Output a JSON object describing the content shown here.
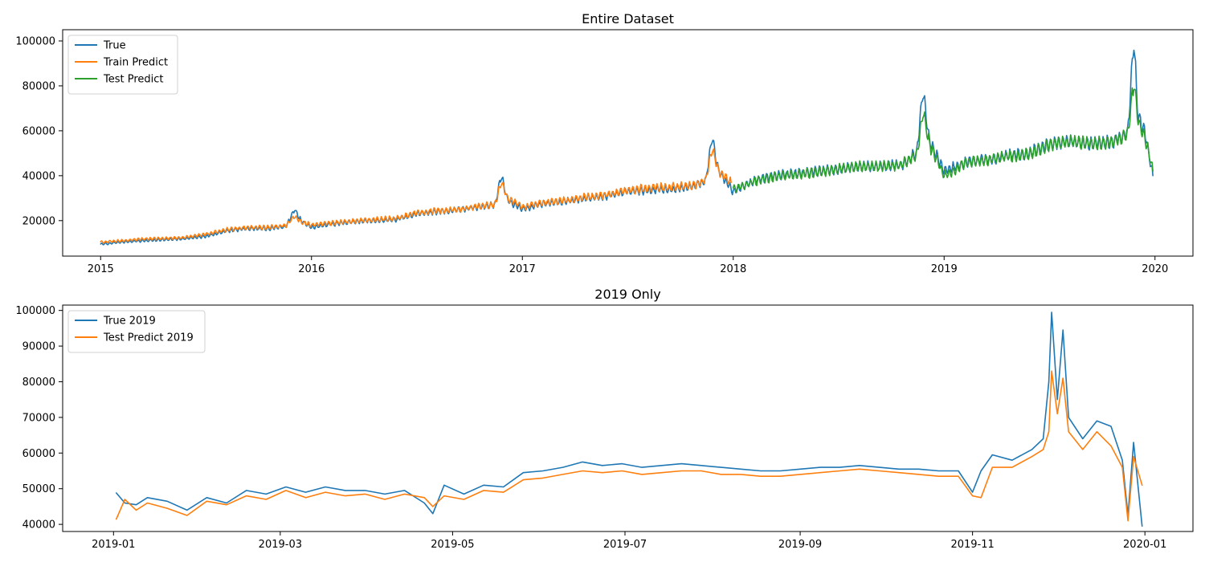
{
  "chart_data": [
    {
      "type": "line",
      "title": "Entire Dataset",
      "xlabel": "",
      "ylabel": "",
      "x_axis": "year",
      "xlim": [
        2014.82,
        2020.18
      ],
      "ylim": [
        4200,
        105000
      ],
      "xticks": [
        2015,
        2016,
        2017,
        2018,
        2019,
        2020
      ],
      "xtick_labels": [
        "2015",
        "2016",
        "2017",
        "2018",
        "2019",
        "2020"
      ],
      "yticks": [
        20000,
        40000,
        60000,
        80000,
        100000
      ],
      "ytick_labels": [
        "20000",
        "40000",
        "60000",
        "80000",
        "100000"
      ],
      "legend_position": "top-left",
      "legend": [
        "True",
        "Train Predict",
        "Test Predict"
      ],
      "series": [
        {
          "name": "True",
          "color": "#1f77b4",
          "x": [
            2015.0,
            2015.1,
            2015.2,
            2015.3,
            2015.4,
            2015.5,
            2015.6,
            2015.7,
            2015.8,
            2015.88,
            2015.92,
            2015.95,
            2016.0,
            2016.1,
            2016.2,
            2016.3,
            2016.4,
            2016.5,
            2016.6,
            2016.7,
            2016.8,
            2016.87,
            2016.9,
            2016.93,
            2017.0,
            2017.1,
            2017.2,
            2017.3,
            2017.4,
            2017.5,
            2017.6,
            2017.7,
            2017.8,
            2017.87,
            2017.9,
            2017.93,
            2018.0,
            2018.1,
            2018.2,
            2018.3,
            2018.4,
            2018.5,
            2018.6,
            2018.7,
            2018.8,
            2018.87,
            2018.9,
            2018.93,
            2019.0,
            2019.1,
            2019.2,
            2019.3,
            2019.4,
            2019.5,
            2019.6,
            2019.7,
            2019.8,
            2019.87,
            2019.9,
            2019.92,
            2019.95,
            2019.99
          ],
          "y": [
            9500,
            10500,
            11000,
            11500,
            12000,
            13000,
            15500,
            16500,
            16500,
            17500,
            25000,
            20000,
            17000,
            18500,
            19500,
            20000,
            20500,
            23000,
            24000,
            25000,
            26000,
            27000,
            40000,
            29000,
            25000,
            27500,
            28500,
            30000,
            31000,
            33000,
            33500,
            34000,
            35000,
            38000,
            57000,
            42000,
            33000,
            38000,
            40000,
            41000,
            42000,
            43000,
            44000,
            44000,
            45000,
            50000,
            78000,
            55000,
            42000,
            46000,
            47000,
            49000,
            50000,
            54000,
            55000,
            54000,
            55000,
            59000,
            99500,
            66000,
            60000,
            40000
          ]
        },
        {
          "name": "Train Predict",
          "color": "#ff7f0e",
          "x": [
            2015.0,
            2015.1,
            2015.2,
            2015.3,
            2015.4,
            2015.5,
            2015.6,
            2015.7,
            2015.8,
            2015.88,
            2015.92,
            2015.95,
            2016.0,
            2016.1,
            2016.2,
            2016.3,
            2016.4,
            2016.5,
            2016.6,
            2016.7,
            2016.8,
            2016.87,
            2016.9,
            2016.93,
            2017.0,
            2017.1,
            2017.2,
            2017.3,
            2017.4,
            2017.5,
            2017.6,
            2017.7,
            2017.8,
            2017.87,
            2017.9,
            2017.93,
            2017.99
          ],
          "y": [
            10500,
            11000,
            11800,
            12000,
            12500,
            14000,
            16000,
            17000,
            17000,
            18000,
            22000,
            19500,
            18000,
            19000,
            19800,
            20500,
            21000,
            23500,
            24500,
            25000,
            26500,
            27000,
            37000,
            30000,
            26000,
            28000,
            29000,
            30500,
            31500,
            33500,
            34500,
            35000,
            35500,
            38000,
            52000,
            42000,
            37000
          ]
        },
        {
          "name": "Test Predict",
          "color": "#2ca02c",
          "x": [
            2018.0,
            2018.1,
            2018.2,
            2018.3,
            2018.4,
            2018.5,
            2018.6,
            2018.7,
            2018.8,
            2018.87,
            2018.9,
            2018.93,
            2019.0,
            2019.1,
            2019.2,
            2019.3,
            2019.4,
            2019.5,
            2019.6,
            2019.7,
            2019.8,
            2019.87,
            2019.9,
            2019.92,
            2019.95,
            2019.99
          ],
          "y": [
            34000,
            37500,
            39500,
            40500,
            41500,
            43000,
            44000,
            44000,
            45000,
            49000,
            68000,
            54000,
            40000,
            45500,
            47000,
            48500,
            49500,
            53500,
            55000,
            54000,
            55000,
            58000,
            82000,
            64000,
            58000,
            42000
          ]
        }
      ]
    },
    {
      "type": "line",
      "title": "2019 Only",
      "xlabel": "",
      "ylabel": "",
      "x_axis": "date",
      "xlim": [
        "2018-12-14",
        "2020-01-18"
      ],
      "ylim": [
        38000,
        101500
      ],
      "xticks": [
        "2019-01-01",
        "2019-03-01",
        "2019-05-01",
        "2019-07-01",
        "2019-09-01",
        "2019-11-01",
        "2020-01-01"
      ],
      "xtick_labels": [
        "2019-01",
        "2019-03",
        "2019-05",
        "2019-07",
        "2019-09",
        "2019-11",
        "2020-01"
      ],
      "yticks": [
        40000,
        50000,
        60000,
        70000,
        80000,
        90000,
        100000
      ],
      "ytick_labels": [
        "40000",
        "50000",
        "60000",
        "70000",
        "80000",
        "90000",
        "100000"
      ],
      "legend_position": "top-left",
      "legend": [
        "True 2019",
        "Test Predict 2019"
      ],
      "series": [
        {
          "name": "True 2019",
          "color": "#1f77b4",
          "x": [
            "2019-01-02",
            "2019-01-05",
            "2019-01-09",
            "2019-01-13",
            "2019-01-20",
            "2019-01-27",
            "2019-02-03",
            "2019-02-10",
            "2019-02-17",
            "2019-02-24",
            "2019-03-03",
            "2019-03-10",
            "2019-03-17",
            "2019-03-24",
            "2019-03-31",
            "2019-04-07",
            "2019-04-14",
            "2019-04-21",
            "2019-04-24",
            "2019-04-28",
            "2019-05-05",
            "2019-05-12",
            "2019-05-19",
            "2019-05-26",
            "2019-06-02",
            "2019-06-09",
            "2019-06-16",
            "2019-06-23",
            "2019-06-30",
            "2019-07-07",
            "2019-07-14",
            "2019-07-21",
            "2019-07-28",
            "2019-08-04",
            "2019-08-11",
            "2019-08-18",
            "2019-08-25",
            "2019-09-01",
            "2019-09-08",
            "2019-09-15",
            "2019-09-22",
            "2019-09-29",
            "2019-10-06",
            "2019-10-13",
            "2019-10-20",
            "2019-10-27",
            "2019-11-01",
            "2019-11-04",
            "2019-11-08",
            "2019-11-15",
            "2019-11-22",
            "2019-11-26",
            "2019-11-28",
            "2019-11-29",
            "2019-12-01",
            "2019-12-03",
            "2019-12-05",
            "2019-12-10",
            "2019-12-15",
            "2019-12-20",
            "2019-12-24",
            "2019-12-26",
            "2019-12-28",
            "2019-12-31"
          ],
          "y": [
            48800,
            46000,
            45500,
            47500,
            46500,
            44000,
            47500,
            46000,
            49500,
            48500,
            50500,
            49000,
            50500,
            49500,
            49500,
            48500,
            49500,
            46000,
            43000,
            51000,
            48500,
            51000,
            50500,
            54500,
            55000,
            56000,
            57500,
            56500,
            57000,
            56000,
            56500,
            57000,
            56500,
            56000,
            55500,
            55000,
            55000,
            55500,
            56000,
            56000,
            56500,
            56000,
            55500,
            55500,
            55000,
            55000,
            49000,
            55000,
            59500,
            58000,
            61000,
            64000,
            80000,
            99500,
            75000,
            94500,
            70000,
            64000,
            69000,
            67500,
            58000,
            42500,
            63000,
            39500
          ]
        },
        {
          "name": "Test Predict 2019",
          "color": "#ff7f0e",
          "x": [
            "2019-01-02",
            "2019-01-05",
            "2019-01-09",
            "2019-01-13",
            "2019-01-20",
            "2019-01-27",
            "2019-02-03",
            "2019-02-10",
            "2019-02-17",
            "2019-02-24",
            "2019-03-03",
            "2019-03-10",
            "2019-03-17",
            "2019-03-24",
            "2019-03-31",
            "2019-04-07",
            "2019-04-14",
            "2019-04-21",
            "2019-04-24",
            "2019-04-28",
            "2019-05-05",
            "2019-05-12",
            "2019-05-19",
            "2019-05-26",
            "2019-06-02",
            "2019-06-09",
            "2019-06-16",
            "2019-06-23",
            "2019-06-30",
            "2019-07-07",
            "2019-07-14",
            "2019-07-21",
            "2019-07-28",
            "2019-08-04",
            "2019-08-11",
            "2019-08-18",
            "2019-08-25",
            "2019-09-01",
            "2019-09-08",
            "2019-09-15",
            "2019-09-22",
            "2019-09-29",
            "2019-10-06",
            "2019-10-13",
            "2019-10-20",
            "2019-10-27",
            "2019-11-01",
            "2019-11-04",
            "2019-11-08",
            "2019-11-15",
            "2019-11-22",
            "2019-11-26",
            "2019-11-28",
            "2019-11-29",
            "2019-12-01",
            "2019-12-03",
            "2019-12-05",
            "2019-12-10",
            "2019-12-15",
            "2019-12-20",
            "2019-12-24",
            "2019-12-26",
            "2019-12-28",
            "2019-12-31"
          ],
          "y": [
            41500,
            47000,
            44000,
            46000,
            44500,
            42500,
            46500,
            45500,
            48000,
            47000,
            49500,
            47500,
            49000,
            48000,
            48500,
            47000,
            48500,
            47500,
            45000,
            48000,
            47000,
            49500,
            49000,
            52500,
            53000,
            54000,
            55000,
            54500,
            55000,
            54000,
            54500,
            55000,
            55000,
            54000,
            54000,
            53500,
            53500,
            54000,
            54500,
            55000,
            55500,
            55000,
            54500,
            54000,
            53500,
            53500,
            48000,
            47500,
            56000,
            56000,
            59000,
            61000,
            66000,
            83000,
            71000,
            81000,
            66000,
            61000,
            66000,
            62000,
            56000,
            41000,
            59000,
            51000
          ]
        }
      ]
    }
  ]
}
